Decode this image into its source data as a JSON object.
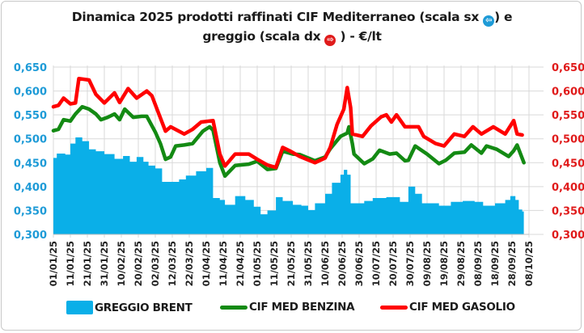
{
  "chart_data": {
    "type": "line",
    "title_line1": "Dinamica 2025 prodotti raffinati CIF Mediterraneo (scala sx",
    "title_line1_end": ") e",
    "title_line2": "greggio (scala dx",
    "title_line2_end": ") - €/lt",
    "xlabel": "",
    "ylabel_left": "",
    "ylabel_right": "",
    "ylim_left": [
      0.3,
      0.65
    ],
    "ylim_right": [
      0.3,
      0.65
    ],
    "yticks_left": [
      "0,300",
      "0,350",
      "0,400",
      "0,450",
      "0,500",
      "0,550",
      "0,600",
      "0,650"
    ],
    "yticks_right": [
      "0,300",
      "0,350",
      "0,400",
      "0,450",
      "0,500",
      "0,550",
      "0,600",
      "0,650"
    ],
    "xticks": [
      "01/01/25",
      "11/01/25",
      "21/01/25",
      "31/01/25",
      "10/02/25",
      "20/02/25",
      "02/03/25",
      "12/03/25",
      "22/03/25",
      "01/04/25",
      "11/04/25",
      "21/04/25",
      "01/05/25",
      "11/05/25",
      "21/05/25",
      "31/05/25",
      "10/06/25",
      "20/06/25",
      "30/06/25",
      "10/07/25",
      "20/07/25",
      "30/07/25",
      "09/08/25",
      "19/08/25",
      "29/08/25",
      "08/09/25",
      "18/09/25",
      "28/09/25",
      "08/10/25"
    ],
    "grid": true,
    "legend_position": "bottom",
    "colors": {
      "brent": "#0AAFE8",
      "benzina": "#138A13",
      "gasolio": "#FF0000",
      "left_axis": "#1E9BD7",
      "right_axis": "#E01B1B"
    },
    "series": [
      {
        "name": "GREGGIO BRENT",
        "type": "area",
        "points": [
          [
            "01/01",
            0.46
          ],
          [
            "03/01",
            0.469
          ],
          [
            "08/01",
            0.467
          ],
          [
            "11/01",
            0.49
          ],
          [
            "14/01",
            0.503
          ],
          [
            "18/01",
            0.495
          ],
          [
            "22/01",
            0.478
          ],
          [
            "26/01",
            0.474
          ],
          [
            "31/01",
            0.468
          ],
          [
            "06/02",
            0.458
          ],
          [
            "11/02",
            0.464
          ],
          [
            "15/02",
            0.452
          ],
          [
            "19/02",
            0.462
          ],
          [
            "23/02",
            0.452
          ],
          [
            "26/02",
            0.444
          ],
          [
            "02/03",
            0.438
          ],
          [
            "06/03",
            0.41
          ],
          [
            "12/03",
            0.41
          ],
          [
            "16/03",
            0.415
          ],
          [
            "20/03",
            0.423
          ],
          [
            "26/03",
            0.432
          ],
          [
            "01/04",
            0.439
          ],
          [
            "04/04",
            0.439
          ],
          [
            "05/04",
            0.376
          ],
          [
            "09/04",
            0.372
          ],
          [
            "12/04",
            0.362
          ],
          [
            "18/04",
            0.38
          ],
          [
            "24/04",
            0.372
          ],
          [
            "29/04",
            0.358
          ],
          [
            "03/05",
            0.342
          ],
          [
            "07/05",
            0.35
          ],
          [
            "12/05",
            0.378
          ],
          [
            "16/05",
            0.37
          ],
          [
            "22/05",
            0.362
          ],
          [
            "27/05",
            0.36
          ],
          [
            "31/05",
            0.351
          ],
          [
            "04/06",
            0.365
          ],
          [
            "10/06",
            0.385
          ],
          [
            "14/06",
            0.408
          ],
          [
            "19/06",
            0.425
          ],
          [
            "21/06",
            0.435
          ],
          [
            "23/06",
            0.425
          ],
          [
            "25/06",
            0.365
          ],
          [
            "03/07",
            0.37
          ],
          [
            "08/07",
            0.376
          ],
          [
            "16/07",
            0.378
          ],
          [
            "24/07",
            0.368
          ],
          [
            "29/07",
            0.4
          ],
          [
            "02/08",
            0.385
          ],
          [
            "06/08",
            0.365
          ],
          [
            "16/08",
            0.36
          ],
          [
            "23/08",
            0.368
          ],
          [
            "30/08",
            0.37
          ],
          [
            "06/09",
            0.368
          ],
          [
            "11/09",
            0.36
          ],
          [
            "18/09",
            0.365
          ],
          [
            "24/09",
            0.372
          ],
          [
            "27/09",
            0.38
          ],
          [
            "30/09",
            0.372
          ],
          [
            "02/10",
            0.352
          ],
          [
            "04/10",
            0.348
          ]
        ]
      },
      {
        "name": "CIF MED BENZINA",
        "type": "line",
        "points": [
          [
            "01/01",
            0.517
          ],
          [
            "04/01",
            0.52
          ],
          [
            "07/01",
            0.54
          ],
          [
            "11/01",
            0.537
          ],
          [
            "14/01",
            0.552
          ],
          [
            "18/01",
            0.567
          ],
          [
            "22/01",
            0.562
          ],
          [
            "26/01",
            0.552
          ],
          [
            "29/01",
            0.54
          ],
          [
            "02/02",
            0.545
          ],
          [
            "06/02",
            0.552
          ],
          [
            "09/02",
            0.54
          ],
          [
            "12/02",
            0.562
          ],
          [
            "17/02",
            0.545
          ],
          [
            "22/02",
            0.547
          ],
          [
            "25/02",
            0.547
          ],
          [
            "02/03",
            0.514
          ],
          [
            "05/03",
            0.49
          ],
          [
            "08/03",
            0.457
          ],
          [
            "11/03",
            0.462
          ],
          [
            "14/03",
            0.485
          ],
          [
            "19/03",
            0.487
          ],
          [
            "24/03",
            0.49
          ],
          [
            "30/03",
            0.516
          ],
          [
            "03/04",
            0.525
          ],
          [
            "05/04",
            0.518
          ],
          [
            "09/04",
            0.45
          ],
          [
            "12/04",
            0.422
          ],
          [
            "18/04",
            0.444
          ],
          [
            "26/04",
            0.447
          ],
          [
            "01/05",
            0.453
          ],
          [
            "07/05",
            0.436
          ],
          [
            "12/05",
            0.438
          ],
          [
            "16/05",
            0.474
          ],
          [
            "22/05",
            0.468
          ],
          [
            "26/05",
            0.467
          ],
          [
            "04/06",
            0.454
          ],
          [
            "10/06",
            0.462
          ],
          [
            "13/06",
            0.479
          ],
          [
            "19/06",
            0.505
          ],
          [
            "23/06",
            0.512
          ],
          [
            "24/06",
            0.525
          ],
          [
            "26/06",
            0.49
          ],
          [
            "27/06",
            0.468
          ],
          [
            "03/07",
            0.448
          ],
          [
            "08/07",
            0.458
          ],
          [
            "12/07",
            0.476
          ],
          [
            "18/07",
            0.468
          ],
          [
            "22/07",
            0.47
          ],
          [
            "27/07",
            0.454
          ],
          [
            "29/07",
            0.455
          ],
          [
            "02/08",
            0.485
          ],
          [
            "09/08",
            0.468
          ],
          [
            "16/08",
            0.448
          ],
          [
            "20/08",
            0.455
          ],
          [
            "25/08",
            0.47
          ],
          [
            "31/08",
            0.472
          ],
          [
            "04/09",
            0.487
          ],
          [
            "10/09",
            0.47
          ],
          [
            "13/09",
            0.485
          ],
          [
            "19/09",
            0.478
          ],
          [
            "26/09",
            0.463
          ],
          [
            "29/09",
            0.475
          ],
          [
            "01/10",
            0.487
          ],
          [
            "05/10",
            0.45
          ]
        ]
      },
      {
        "name": "CIF MED GASOLIO",
        "type": "line",
        "points": [
          [
            "01/01",
            0.567
          ],
          [
            "04/01",
            0.57
          ],
          [
            "07/01",
            0.585
          ],
          [
            "11/01",
            0.573
          ],
          [
            "14/01",
            0.575
          ],
          [
            "16/01",
            0.626
          ],
          [
            "22/01",
            0.623
          ],
          [
            "26/01",
            0.593
          ],
          [
            "31/01",
            0.575
          ],
          [
            "06/02",
            0.596
          ],
          [
            "09/02",
            0.576
          ],
          [
            "14/02",
            0.605
          ],
          [
            "19/02",
            0.585
          ],
          [
            "25/02",
            0.6
          ],
          [
            "28/02",
            0.59
          ],
          [
            "03/03",
            0.562
          ],
          [
            "08/03",
            0.516
          ],
          [
            "11/03",
            0.525
          ],
          [
            "19/03",
            0.51
          ],
          [
            "24/03",
            0.52
          ],
          [
            "29/03",
            0.535
          ],
          [
            "05/04",
            0.538
          ],
          [
            "09/04",
            0.468
          ],
          [
            "12/04",
            0.443
          ],
          [
            "18/04",
            0.468
          ],
          [
            "26/04",
            0.468
          ],
          [
            "01/05",
            0.457
          ],
          [
            "07/05",
            0.445
          ],
          [
            "12/05",
            0.44
          ],
          [
            "16/05",
            0.482
          ],
          [
            "20/05",
            0.475
          ],
          [
            "26/05",
            0.463
          ],
          [
            "04/06",
            0.45
          ],
          [
            "10/06",
            0.46
          ],
          [
            "13/06",
            0.482
          ],
          [
            "17/06",
            0.53
          ],
          [
            "21/06",
            0.562
          ],
          [
            "23/06",
            0.607
          ],
          [
            "25/06",
            0.565
          ],
          [
            "26/06",
            0.51
          ],
          [
            "02/07",
            0.505
          ],
          [
            "07/07",
            0.527
          ],
          [
            "13/07",
            0.546
          ],
          [
            "16/07",
            0.55
          ],
          [
            "19/07",
            0.535
          ],
          [
            "22/07",
            0.55
          ],
          [
            "27/07",
            0.525
          ],
          [
            "04/08",
            0.525
          ],
          [
            "07/08",
            0.505
          ],
          [
            "14/08",
            0.49
          ],
          [
            "19/08",
            0.485
          ],
          [
            "25/08",
            0.51
          ],
          [
            "31/08",
            0.505
          ],
          [
            "05/09",
            0.525
          ],
          [
            "10/09",
            0.51
          ],
          [
            "17/09",
            0.525
          ],
          [
            "24/09",
            0.51
          ],
          [
            "29/09",
            0.538
          ],
          [
            "01/10",
            0.51
          ],
          [
            "04/10",
            0.508
          ]
        ]
      }
    ]
  }
}
